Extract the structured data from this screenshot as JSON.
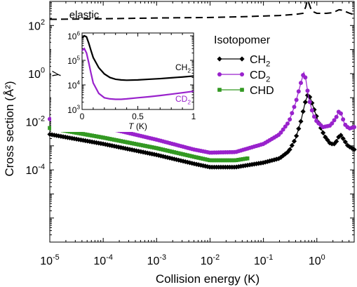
{
  "chart_data": {
    "main": {
      "type": "line",
      "xlabel": "Collision energy (K)",
      "ylabel": "Cross section (Å²)",
      "xscale": "log",
      "yscale": "log",
      "xlim": [
        1e-05,
        5
      ],
      "ylim": [
        1e-07,
        1000.0
      ],
      "x_ticks": [
        {
          "value": 1e-05,
          "base": "10",
          "exp": "-5"
        },
        {
          "value": 0.0001,
          "base": "10",
          "exp": "-4"
        },
        {
          "value": 0.001,
          "base": "10",
          "exp": "-3"
        },
        {
          "value": 0.01,
          "base": "10",
          "exp": "-2"
        },
        {
          "value": 0.1,
          "base": "10",
          "exp": "-1"
        },
        {
          "value": 1,
          "base": "10",
          "exp": "0"
        }
      ],
      "y_ticks": [
        {
          "value": 0.0001,
          "base": "10",
          "exp": "-4"
        },
        {
          "value": 0.01,
          "base": "10",
          "exp": "-2"
        },
        {
          "value": 1,
          "base": "10",
          "exp": "0"
        },
        {
          "value": 100,
          "base": "10",
          "exp": "2"
        }
      ],
      "legend_title": "Isotopomer",
      "legend_placement": "upper-right",
      "series": [
        {
          "key": "elastic",
          "label": "elastic",
          "style": "dashed",
          "marker": "none",
          "color": "#000000",
          "points": [
            [
              1e-05,
              180
            ],
            [
              0.0001,
              190
            ],
            [
              0.001,
              205
            ],
            [
              0.01,
              215
            ],
            [
              0.05,
              235
            ],
            [
              0.2,
              260
            ],
            [
              0.4,
              290
            ],
            [
              0.55,
              320
            ],
            [
              0.62,
              600
            ],
            [
              0.66,
              1100
            ],
            [
              0.7,
              900
            ],
            [
              0.8,
              400
            ],
            [
              1.0,
              320
            ],
            [
              1.5,
              320
            ],
            [
              2.0,
              340
            ],
            [
              2.6,
              450
            ],
            [
              3.0,
              430
            ],
            [
              4.0,
              330
            ],
            [
              5.0,
              280
            ]
          ]
        },
        {
          "key": "ch2",
          "label_main": "CH",
          "label_sub": "2",
          "style": "solid",
          "marker": "diamond",
          "color": "#000000",
          "points": [
            [
              1e-05,
              0.003
            ],
            [
              0.0001,
              0.0012
            ],
            [
              0.001,
              0.00042
            ],
            [
              0.005,
              0.00018
            ],
            [
              0.01,
              0.00013
            ],
            [
              0.03,
              0.00013
            ],
            [
              0.1,
              0.0002
            ],
            [
              0.2,
              0.0003
            ],
            [
              0.3,
              0.0006
            ],
            [
              0.4,
              0.002
            ],
            [
              0.5,
              0.01
            ],
            [
              0.6,
              0.06
            ],
            [
              0.68,
              0.14
            ],
            [
              0.75,
              0.1
            ],
            [
              0.9,
              0.03
            ],
            [
              1.1,
              0.008
            ],
            [
              1.4,
              0.0025
            ],
            [
              1.8,
              0.0012
            ],
            [
              2.2,
              0.0012
            ],
            [
              2.6,
              0.0025
            ],
            [
              2.8,
              0.0028
            ],
            [
              3.2,
              0.0018
            ],
            [
              3.8,
              0.001
            ],
            [
              4.5,
              0.0008
            ],
            [
              5.0,
              0.0007
            ]
          ]
        },
        {
          "key": "cd2",
          "label_main": "CD",
          "label_sub": "2",
          "style": "solid",
          "marker": "circle",
          "color": "#9922cc",
          "points": [
            [
              1e-05,
              0.013
            ],
            [
              0.0001,
              0.006
            ],
            [
              0.001,
              0.0018
            ],
            [
              0.005,
              0.0007
            ],
            [
              0.01,
              0.00052
            ],
            [
              0.03,
              0.00055
            ],
            [
              0.1,
              0.0012
            ],
            [
              0.2,
              0.003
            ],
            [
              0.3,
              0.01
            ],
            [
              0.4,
              0.06
            ],
            [
              0.5,
              0.4
            ],
            [
              0.57,
              1.1
            ],
            [
              0.62,
              0.6
            ],
            [
              0.7,
              0.1
            ],
            [
              0.85,
              0.02
            ],
            [
              1.0,
              0.01
            ],
            [
              1.3,
              0.006
            ],
            [
              1.8,
              0.007
            ],
            [
              2.3,
              0.015
            ],
            [
              2.6,
              0.028
            ],
            [
              2.9,
              0.02
            ],
            [
              3.3,
              0.008
            ],
            [
              4.0,
              0.0052
            ],
            [
              5.0,
              0.006
            ]
          ]
        },
        {
          "key": "chd",
          "label_main": "CHD",
          "label_sub": "",
          "style": "solid",
          "marker": "square",
          "color": "#339922",
          "points": [
            [
              1e-05,
              0.0055
            ],
            [
              0.0001,
              0.0022
            ],
            [
              0.001,
              0.0008
            ],
            [
              0.005,
              0.00035
            ],
            [
              0.01,
              0.00025
            ],
            [
              0.03,
              0.00025
            ],
            [
              0.05,
              0.0003
            ]
          ]
        }
      ]
    },
    "inset": {
      "type": "line",
      "xlabel_italic": "T",
      "xlabel_rest": " (K)",
      "ylabel": "γ",
      "xscale": "linear",
      "yscale": "log",
      "xlim": [
        0,
        1
      ],
      "ylim": [
        1000,
        1300000
      ],
      "x_ticks": [
        {
          "value": 0,
          "label": "0"
        },
        {
          "value": 0.5,
          "label": "0.5"
        },
        {
          "value": 1,
          "label": "1"
        }
      ],
      "y_ticks": [
        {
          "value": 1000,
          "base": "10",
          "exp": "3"
        },
        {
          "value": 10000,
          "base": "10",
          "exp": "4"
        },
        {
          "value": 100000,
          "base": "10",
          "exp": "5"
        },
        {
          "value": 1000000,
          "base": "10",
          "exp": "6"
        }
      ],
      "series": [
        {
          "key": "ch2",
          "label_main": "CH",
          "label_sub": "2",
          "color": "#000000",
          "points": [
            [
              0.0,
              800000
            ],
            [
              0.02,
              1000000
            ],
            [
              0.04,
              900000
            ],
            [
              0.06,
              500000
            ],
            [
              0.08,
              250000
            ],
            [
              0.1,
              130000
            ],
            [
              0.15,
              50000
            ],
            [
              0.2,
              28000
            ],
            [
              0.25,
              20000
            ],
            [
              0.3,
              17000
            ],
            [
              0.35,
              16000
            ],
            [
              0.4,
              15500
            ],
            [
              0.5,
              16000
            ],
            [
              0.6,
              17000
            ],
            [
              0.7,
              18000
            ],
            [
              0.8,
              19500
            ],
            [
              0.9,
              21000
            ],
            [
              1.0,
              23000
            ]
          ]
        },
        {
          "key": "cd2",
          "label_main": "CD",
          "label_sub": "2",
          "color": "#9922cc",
          "points": [
            [
              0.0,
              250000
            ],
            [
              0.02,
              300000
            ],
            [
              0.04,
              200000
            ],
            [
              0.06,
              80000
            ],
            [
              0.08,
              30000
            ],
            [
              0.1,
              12000
            ],
            [
              0.15,
              4500
            ],
            [
              0.2,
              3000
            ],
            [
              0.25,
              2700
            ],
            [
              0.3,
              2600
            ],
            [
              0.35,
              2600
            ],
            [
              0.4,
              2700
            ],
            [
              0.5,
              3000
            ],
            [
              0.6,
              3300
            ],
            [
              0.7,
              3700
            ],
            [
              0.8,
              4200
            ],
            [
              0.9,
              4800
            ],
            [
              1.0,
              5500
            ]
          ]
        }
      ]
    }
  }
}
